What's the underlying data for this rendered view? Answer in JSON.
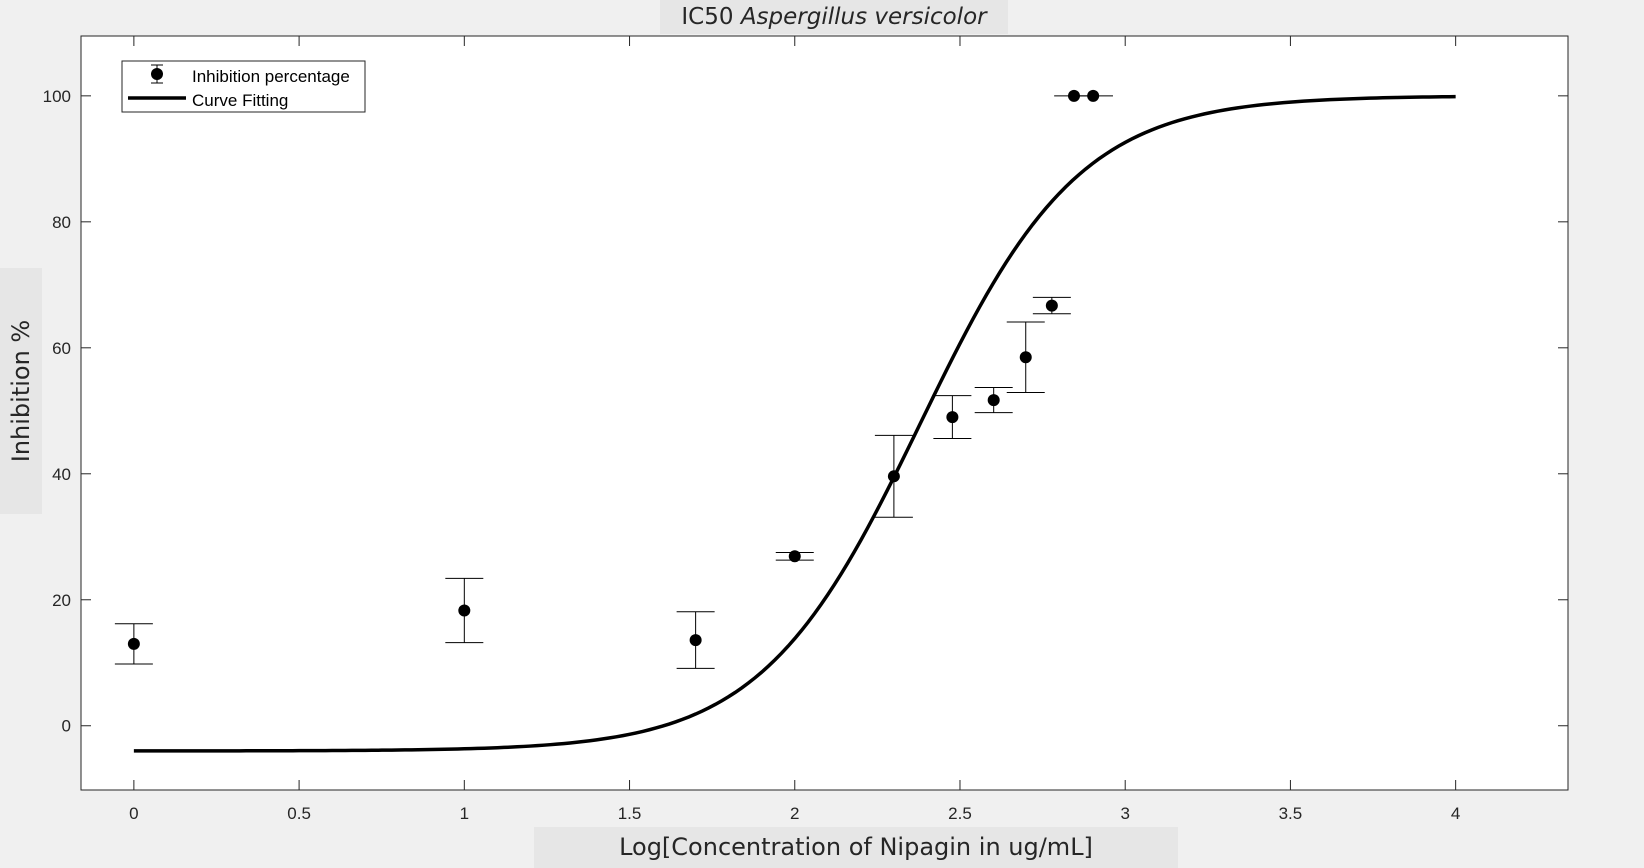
{
  "chart_data": {
    "type": "scatter",
    "title": "IC50",
    "title_species": "Aspergillus versicolor",
    "xlabel": "Log[Concentration of Nipagin in ug/mL]",
    "ylabel": "Inhibition %",
    "xlim": [
      -0.16,
      4.34
    ],
    "ylim": [
      -10.2,
      109.5
    ],
    "xticks": [
      0,
      0.5,
      1,
      1.5,
      2,
      2.5,
      3,
      3.5,
      4
    ],
    "xtick_labels": [
      "0",
      "0.5",
      "1",
      "1.5",
      "2",
      "2.5",
      "3",
      "3.5",
      "4"
    ],
    "yticks": [
      0,
      20,
      40,
      60,
      80,
      100
    ],
    "ytick_labels": [
      "0",
      "20",
      "40",
      "60",
      "80",
      "100"
    ],
    "grid": false,
    "legend_position": "top-left",
    "series": [
      {
        "name": "Inhibition percentage",
        "kind": "errorbar",
        "x": [
          0,
          1,
          1.7,
          2,
          2.3,
          2.477,
          2.602,
          2.699,
          2.778,
          2.845,
          2.903
        ],
        "y": [
          13,
          18.3,
          13.6,
          26.9,
          39.6,
          49,
          51.7,
          58.5,
          66.7,
          100,
          100
        ],
        "yerr": [
          3.2,
          5.1,
          4.5,
          0.6,
          6.5,
          3.4,
          2,
          5.6,
          1.3,
          0,
          0
        ],
        "xerr": [
          0,
          0,
          0,
          0,
          0,
          0,
          0,
          0,
          0,
          0.06,
          0.06
        ]
      },
      {
        "name": "Curve Fitting",
        "kind": "line",
        "model": "4PL",
        "bottom": -4,
        "top": 100,
        "logIC50": 2.38,
        "hill_slope": 1.8,
        "x_range": [
          0,
          4
        ]
      }
    ]
  }
}
